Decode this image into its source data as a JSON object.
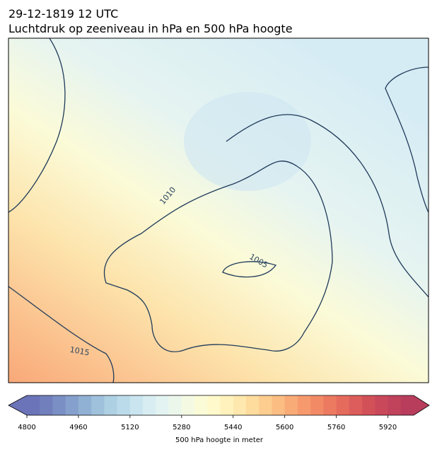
{
  "header": {
    "title": [
      "29-12-1819 12 UTC",
      "Luchtdruk op zeeniveau in hPa en 500 hPa hoogte"
    ]
  },
  "map": {
    "contour_labels": [
      "1010",
      "1005",
      "1015"
    ]
  },
  "colorbar": {
    "label": "500 hPa hoogte in meter",
    "lim": [
      4800,
      6000
    ],
    "ticks": [
      4800,
      4960,
      5120,
      5280,
      5440,
      5600,
      5760,
      5920
    ],
    "colors": [
      "#6b74b8",
      "#717fbd",
      "#7a8fc4",
      "#85a0cc",
      "#91b1d4",
      "#9fc1dc",
      "#aed0e3",
      "#bcdbea",
      "#cae5ef",
      "#d8edf2",
      "#e3f3f2",
      "#ecf7ec",
      "#f4fae2",
      "#fbfbd7",
      "#fff9cc",
      "#fff2bd",
      "#fee8ad",
      "#fddc9e",
      "#fccd8f",
      "#fbbd82",
      "#f9ab77",
      "#f69a6e",
      "#f28a66",
      "#ec7a60",
      "#e56b5d",
      "#dc5d5b",
      "#d25159",
      "#c9485a",
      "#c0425b",
      "#b83d5c"
    ]
  }
}
